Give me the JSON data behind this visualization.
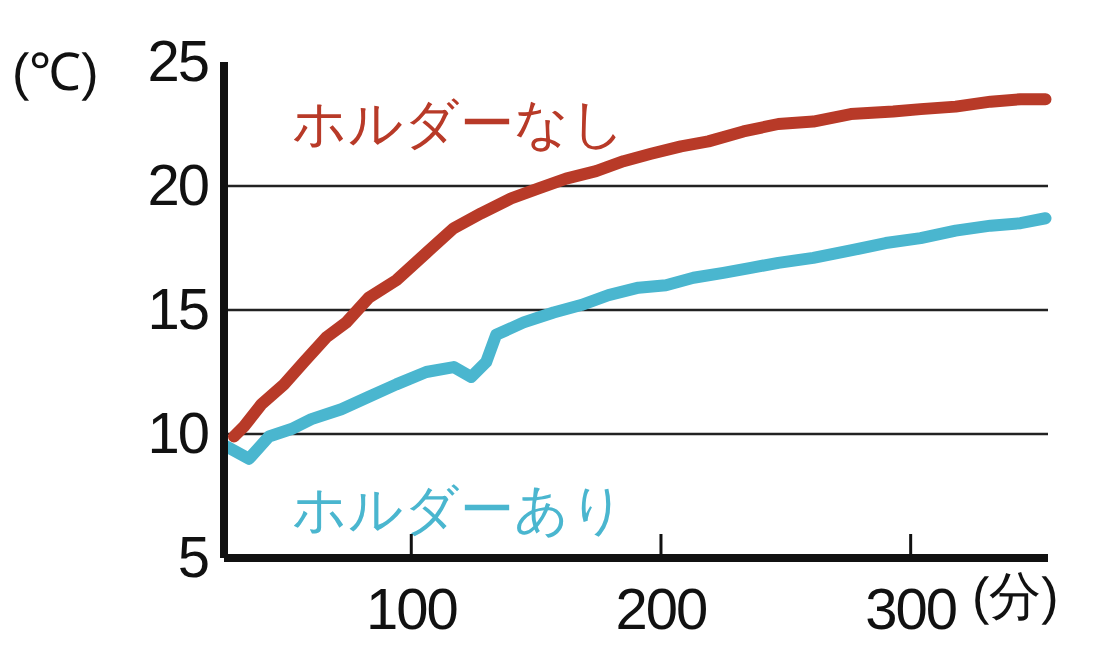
{
  "chart_data": {
    "type": "line",
    "xlabel": "(分)",
    "ylabel": "(℃)",
    "xlim": [
      25,
      355
    ],
    "ylim": [
      5,
      25
    ],
    "xticks": [
      100,
      200,
      300
    ],
    "yticks": [
      5,
      10,
      15,
      20,
      25
    ],
    "grid": "y",
    "marker": "none",
    "line_style": "solid",
    "series": [
      {
        "name": "ホルダーなし",
        "color": "#b83a28",
        "x": [
          29,
          33,
          40,
          49,
          57,
          66,
          74,
          83,
          94,
          106,
          117,
          128,
          140,
          151,
          162,
          174,
          185,
          196,
          208,
          219,
          233,
          247,
          261,
          276,
          293,
          304,
          318,
          332,
          344,
          354
        ],
        "values": [
          9.9,
          10.3,
          11.2,
          12.0,
          12.9,
          13.9,
          14.5,
          15.5,
          16.2,
          17.3,
          18.3,
          18.9,
          19.5,
          19.9,
          20.3,
          20.6,
          21.0,
          21.3,
          21.6,
          21.8,
          22.2,
          22.5,
          22.6,
          22.9,
          23.0,
          23.1,
          23.2,
          23.4,
          23.5,
          23.5
        ]
      },
      {
        "name": "ホルダーあり",
        "color": "#4ab6cf",
        "x": [
          26,
          35,
          43,
          52,
          60,
          72,
          83,
          94,
          106,
          117,
          124,
          130,
          134,
          145,
          157,
          168,
          179,
          191,
          202,
          213,
          225,
          236,
          247,
          261,
          276,
          290,
          304,
          318,
          332,
          344,
          354
        ],
        "values": [
          9.5,
          9.0,
          9.9,
          10.2,
          10.6,
          11.0,
          11.5,
          12.0,
          12.5,
          12.7,
          12.3,
          12.9,
          14.0,
          14.5,
          14.9,
          15.2,
          15.6,
          15.9,
          16.0,
          16.3,
          16.5,
          16.7,
          16.9,
          17.1,
          17.4,
          17.7,
          17.9,
          18.2,
          18.4,
          18.5,
          18.7
        ]
      }
    ]
  }
}
